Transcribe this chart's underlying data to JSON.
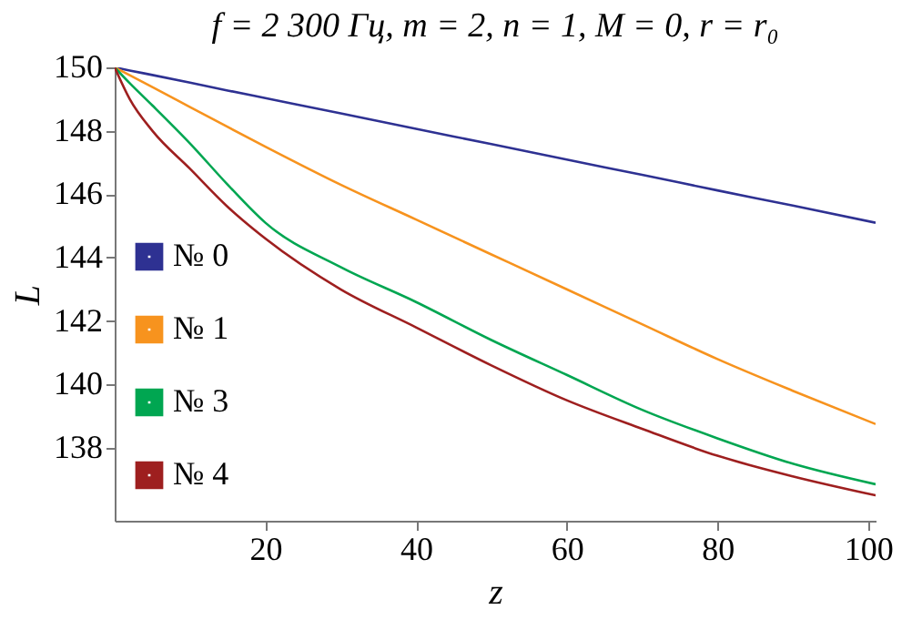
{
  "chart_data": {
    "type": "line",
    "title": "f = 2 300 Гц, m = 2, n = 1, M = 0, r = r₀",
    "xlabel": "z",
    "ylabel": "L",
    "x": [
      0,
      2,
      5,
      10,
      15,
      20,
      30,
      40,
      50,
      60,
      70,
      80,
      90,
      101
    ],
    "series": [
      {
        "name": "№ 0",
        "color": "#2e3192",
        "values": [
          150,
          149.9,
          149.76,
          149.52,
          149.27,
          149.03,
          148.55,
          148.06,
          147.58,
          147.09,
          146.61,
          146.12,
          145.64,
          145.1
        ]
      },
      {
        "name": "№ 1",
        "color": "#f7931e",
        "values": [
          150,
          149.75,
          149.38,
          148.75,
          148.12,
          147.5,
          146.3,
          145.2,
          144.1,
          143.0,
          141.9,
          140.8,
          139.8,
          138.75
        ]
      },
      {
        "name": "№ 3",
        "color": "#00a651",
        "values": [
          150,
          149.5,
          148.8,
          147.6,
          146.3,
          145.1,
          143.7,
          142.6,
          141.4,
          140.3,
          139.2,
          138.3,
          137.5,
          136.85
        ]
      },
      {
        "name": "№ 4",
        "color": "#9e1f1f",
        "values": [
          150,
          149.0,
          148.0,
          146.8,
          145.6,
          144.6,
          143.0,
          141.8,
          140.6,
          139.5,
          138.6,
          137.75,
          137.1,
          136.5
        ]
      }
    ],
    "xlim": [
      0,
      101
    ],
    "ylim": [
      135.7,
      150
    ],
    "xticks": [
      20,
      40,
      60,
      80,
      100
    ],
    "yticks": [
      138,
      140,
      142,
      144,
      146,
      148,
      150
    ],
    "grid": false,
    "legend": "bottom left",
    "marker": "none",
    "line_style": "solid"
  }
}
